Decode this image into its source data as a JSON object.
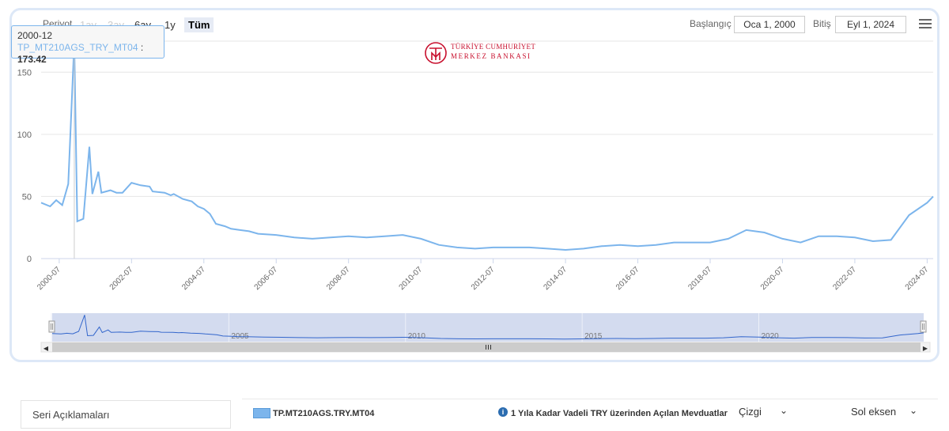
{
  "toolbar": {
    "periyot_label": "Periyot",
    "range_buttons": [
      "1ay",
      "3ay",
      "6ay",
      "1y",
      "Tüm"
    ],
    "start_label": "Başlangıç",
    "start_value": "Oca 1, 2000",
    "end_label": "Bitiş",
    "end_value": "Eyl 1, 2024"
  },
  "tooltip": {
    "date": "2000-12",
    "series": "TP_MT210AGS_TRY_MT04",
    "value": "173.42"
  },
  "logo": {
    "line1": "TÜRKİYE CUMHURİYET",
    "line2": "MERKEZ BANKASI"
  },
  "footer": {
    "seri_label": "Seri Açıklamaları",
    "series_code": "TP.MT210AGS.TRY.MT04",
    "info_icon": "info-circle-icon",
    "series_desc": "1 Yıla Kadar Vadeli TRY üzerinden Açılan Mevduatlar",
    "chart_type": "Çizgi",
    "axis": "Sol eksen"
  },
  "chart_data": {
    "type": "line",
    "color": "#7cb5ec",
    "xlim": [
      "2000-01",
      "2024-09"
    ],
    "ylim": [
      0,
      175
    ],
    "yticks": [
      0,
      50,
      100,
      150
    ],
    "xtick_labels": [
      "2000-07",
      "2002-07",
      "2004-07",
      "2006-07",
      "2008-07",
      "2010-07",
      "2012-07",
      "2014-07",
      "2016-07",
      "2018-07",
      "2020-07",
      "2022-07",
      "2024-07"
    ],
    "navigator_labels": [
      "2005",
      "2010",
      "2015",
      "2020"
    ],
    "series": [
      {
        "points": [
          [
            "2000-01",
            45
          ],
          [
            "2000-04",
            42
          ],
          [
            "2000-06",
            47
          ],
          [
            "2000-08",
            43
          ],
          [
            "2000-10",
            60
          ],
          [
            "2000-12",
            173.42
          ],
          [
            "2001-01",
            30
          ],
          [
            "2001-03",
            32
          ],
          [
            "2001-05",
            90
          ],
          [
            "2001-06",
            52
          ],
          [
            "2001-08",
            70
          ],
          [
            "2001-09",
            53
          ],
          [
            "2001-12",
            55
          ],
          [
            "2002-02",
            53
          ],
          [
            "2002-04",
            53
          ],
          [
            "2002-07",
            61
          ],
          [
            "2002-10",
            59
          ],
          [
            "2003-01",
            58
          ],
          [
            "2003-02",
            54
          ],
          [
            "2003-06",
            53
          ],
          [
            "2003-08",
            51
          ],
          [
            "2003-09",
            52
          ],
          [
            "2003-12",
            48
          ],
          [
            "2004-03",
            46
          ],
          [
            "2004-05",
            42
          ],
          [
            "2004-07",
            40
          ],
          [
            "2004-09",
            36
          ],
          [
            "2004-11",
            28
          ],
          [
            "2005-02",
            26
          ],
          [
            "2005-04",
            24
          ],
          [
            "2005-07",
            23
          ],
          [
            "2005-10",
            22
          ],
          [
            "2006-01",
            20
          ],
          [
            "2006-07",
            19
          ],
          [
            "2007-01",
            17
          ],
          [
            "2007-07",
            16
          ],
          [
            "2008-01",
            17
          ],
          [
            "2008-07",
            18
          ],
          [
            "2009-01",
            17
          ],
          [
            "2009-07",
            18
          ],
          [
            "2010-01",
            19
          ],
          [
            "2010-07",
            16
          ],
          [
            "2011-01",
            11
          ],
          [
            "2011-07",
            9
          ],
          [
            "2012-01",
            8
          ],
          [
            "2012-07",
            9
          ],
          [
            "2013-01",
            9
          ],
          [
            "2013-07",
            9
          ],
          [
            "2014-01",
            8
          ],
          [
            "2014-07",
            7
          ],
          [
            "2015-01",
            8
          ],
          [
            "2015-07",
            10
          ],
          [
            "2016-01",
            11
          ],
          [
            "2016-07",
            10
          ],
          [
            "2017-01",
            11
          ],
          [
            "2017-07",
            13
          ],
          [
            "2018-01",
            13
          ],
          [
            "2018-07",
            13
          ],
          [
            "2019-01",
            16
          ],
          [
            "2019-07",
            23
          ],
          [
            "2020-01",
            21
          ],
          [
            "2020-07",
            16
          ],
          [
            "2021-01",
            13
          ],
          [
            "2021-07",
            18
          ],
          [
            "2022-01",
            18
          ],
          [
            "2022-07",
            17
          ],
          [
            "2023-01",
            14
          ],
          [
            "2023-07",
            15
          ],
          [
            "2024-01",
            35
          ],
          [
            "2024-07",
            45
          ],
          [
            "2024-09",
            50
          ]
        ]
      }
    ]
  }
}
